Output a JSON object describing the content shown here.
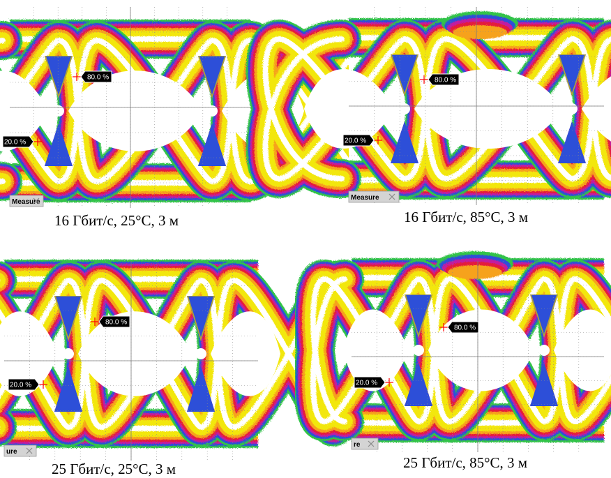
{
  "panels": [
    {
      "caption": "16 Гбит/с, 25°C, 3 м",
      "marker_high": "80.0 %",
      "marker_low": "20.0 %",
      "tab_label": "Measure"
    },
    {
      "caption": "16 Гбит/с, 85°C, 3 м",
      "marker_high": "80.0 %",
      "marker_low": "20.0 %",
      "tab_label": "Measure"
    },
    {
      "caption": "25 Гбит/с, 25°C, 3 м",
      "marker_high": "80.0 %",
      "marker_low": "20.0 %",
      "tab_label": "ure"
    },
    {
      "caption": "25 Гбит/с, 85°C, 3 м",
      "marker_high": "80.0 %",
      "marker_low": "20.0 %",
      "tab_label": "re"
    }
  ],
  "colors": {
    "core": "#ffffff",
    "yellow": "#f2e70a",
    "orange": "#f6a21b",
    "red": "#e51f3b",
    "magenta": "#c21fa0",
    "blue": "#2d4fd8",
    "green": "#33c34a",
    "marker": "#ff0000",
    "label_bg": "#000000"
  }
}
